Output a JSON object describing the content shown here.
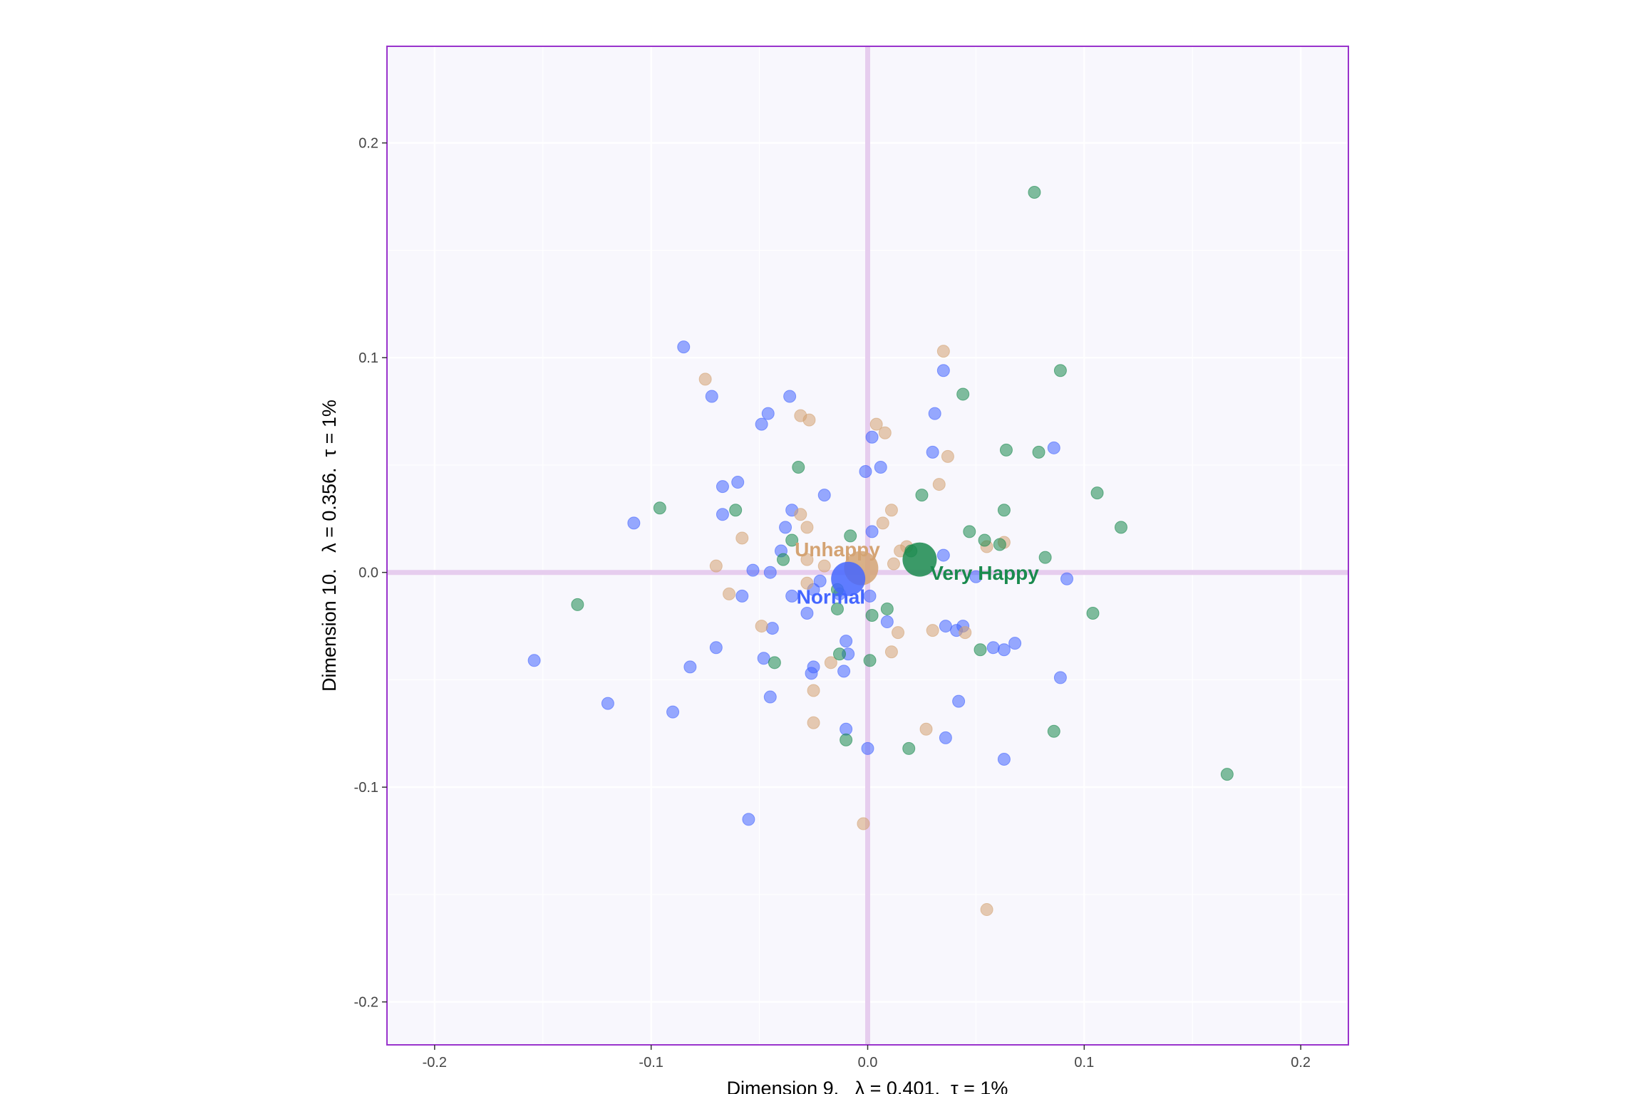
{
  "chart_data": {
    "type": "scatter",
    "title": "",
    "xlabel": "Dimension 9.   λ = 0.401.  τ = 1%",
    "ylabel": "Dimension 10.   λ = 0.356.  τ = 1%",
    "xlim": [
      -0.222,
      0.222
    ],
    "ylim": [
      -0.22,
      0.245
    ],
    "x_ticks": [
      -0.2,
      -0.1,
      0.0,
      0.1,
      0.2
    ],
    "x_tick_labels": [
      "-0.2",
      "-0.1",
      "0.0",
      "0.1",
      "0.2"
    ],
    "y_ticks": [
      -0.2,
      -0.1,
      0.0,
      0.1,
      0.2
    ],
    "y_tick_labels": [
      "-0.2",
      "-0.1",
      "0.0",
      "0.1",
      "0.2"
    ],
    "grid": true,
    "colors": {
      "panel_background": "#f8f7fd",
      "panel_border": "#9933cc",
      "origin_lines": "#e6cdee",
      "grid": "#ffffff",
      "Normal": "#4466ff",
      "Unhappy": "#d4a373",
      "Very Happy": "#1a8a4e"
    },
    "series": [
      {
        "name": "Normal",
        "color": "#4466ff",
        "centroid": [
          -0.009,
          -0.003
        ],
        "points": [
          [
            -0.085,
            0.105
          ],
          [
            -0.072,
            0.082
          ],
          [
            -0.036,
            0.082
          ],
          [
            -0.046,
            0.074
          ],
          [
            -0.049,
            0.069
          ],
          [
            0.002,
            0.063
          ],
          [
            0.031,
            0.074
          ],
          [
            0.035,
            0.094
          ],
          [
            0.03,
            0.056
          ],
          [
            0.086,
            0.058
          ],
          [
            -0.001,
            0.047
          ],
          [
            0.006,
            0.049
          ],
          [
            -0.06,
            0.042
          ],
          [
            -0.067,
            0.04
          ],
          [
            -0.02,
            0.036
          ],
          [
            -0.035,
            0.029
          ],
          [
            -0.108,
            0.023
          ],
          [
            -0.067,
            0.027
          ],
          [
            -0.038,
            0.021
          ],
          [
            -0.04,
            0.01
          ],
          [
            -0.053,
            0.001
          ],
          [
            -0.045,
            0.0
          ],
          [
            -0.035,
            -0.011
          ],
          [
            -0.022,
            -0.004
          ],
          [
            -0.025,
            -0.008
          ],
          [
            -0.028,
            -0.019
          ],
          [
            -0.013,
            -0.01
          ],
          [
            0.001,
            -0.011
          ],
          [
            0.002,
            0.019
          ],
          [
            0.035,
            0.008
          ],
          [
            0.05,
            -0.002
          ],
          [
            0.092,
            -0.003
          ],
          [
            -0.058,
            -0.011
          ],
          [
            -0.044,
            -0.026
          ],
          [
            -0.07,
            -0.035
          ],
          [
            -0.048,
            -0.04
          ],
          [
            -0.082,
            -0.044
          ],
          [
            -0.025,
            -0.044
          ],
          [
            -0.026,
            -0.047
          ],
          [
            -0.011,
            -0.046
          ],
          [
            -0.01,
            -0.032
          ],
          [
            -0.009,
            -0.038
          ],
          [
            0.009,
            -0.023
          ],
          [
            0.036,
            -0.025
          ],
          [
            0.041,
            -0.027
          ],
          [
            0.044,
            -0.025
          ],
          [
            0.058,
            -0.035
          ],
          [
            0.063,
            -0.036
          ],
          [
            0.068,
            -0.033
          ],
          [
            0.089,
            -0.049
          ],
          [
            -0.154,
            -0.041
          ],
          [
            -0.12,
            -0.061
          ],
          [
            -0.09,
            -0.065
          ],
          [
            -0.045,
            -0.058
          ],
          [
            -0.01,
            -0.073
          ],
          [
            0.0,
            -0.082
          ],
          [
            0.036,
            -0.077
          ],
          [
            0.042,
            -0.06
          ],
          [
            0.063,
            -0.087
          ],
          [
            -0.055,
            -0.115
          ]
        ]
      },
      {
        "name": "Unhappy",
        "color": "#d4a373",
        "centroid": [
          -0.003,
          0.002
        ],
        "points": [
          [
            -0.075,
            0.09
          ],
          [
            -0.031,
            0.073
          ],
          [
            -0.027,
            0.071
          ],
          [
            0.004,
            0.069
          ],
          [
            0.008,
            0.065
          ],
          [
            0.035,
            0.103
          ],
          [
            0.037,
            0.054
          ],
          [
            0.033,
            0.041
          ],
          [
            0.011,
            0.029
          ],
          [
            0.007,
            0.023
          ],
          [
            -0.031,
            0.027
          ],
          [
            -0.028,
            0.021
          ],
          [
            -0.058,
            0.016
          ],
          [
            -0.07,
            0.003
          ],
          [
            -0.064,
            -0.01
          ],
          [
            -0.028,
            0.006
          ],
          [
            -0.02,
            0.003
          ],
          [
            -0.028,
            -0.005
          ],
          [
            0.012,
            0.004
          ],
          [
            0.015,
            0.01
          ],
          [
            0.018,
            0.012
          ],
          [
            0.055,
            0.012
          ],
          [
            0.063,
            0.014
          ],
          [
            -0.049,
            -0.025
          ],
          [
            -0.017,
            -0.042
          ],
          [
            -0.025,
            -0.055
          ],
          [
            -0.025,
            -0.07
          ],
          [
            0.011,
            -0.037
          ],
          [
            0.014,
            -0.028
          ],
          [
            0.03,
            -0.027
          ],
          [
            0.045,
            -0.028
          ],
          [
            0.027,
            -0.073
          ],
          [
            -0.002,
            -0.117
          ],
          [
            0.055,
            -0.157
          ]
        ]
      },
      {
        "name": "Very Happy",
        "color": "#1a8a4e",
        "centroid": [
          0.024,
          0.006
        ],
        "points": [
          [
            0.077,
            0.177
          ],
          [
            0.089,
            0.094
          ],
          [
            0.044,
            0.083
          ],
          [
            0.064,
            0.057
          ],
          [
            0.079,
            0.056
          ],
          [
            0.106,
            0.037
          ],
          [
            0.117,
            0.021
          ],
          [
            0.063,
            0.029
          ],
          [
            0.025,
            0.036
          ],
          [
            -0.032,
            0.049
          ],
          [
            -0.096,
            0.03
          ],
          [
            -0.061,
            0.029
          ],
          [
            -0.035,
            0.015
          ],
          [
            -0.039,
            0.006
          ],
          [
            -0.008,
            0.017
          ],
          [
            0.047,
            0.019
          ],
          [
            0.054,
            0.015
          ],
          [
            0.061,
            0.013
          ],
          [
            0.082,
            0.007
          ],
          [
            0.02,
            0.01
          ],
          [
            -0.014,
            -0.008
          ],
          [
            -0.014,
            -0.017
          ],
          [
            0.009,
            -0.017
          ],
          [
            0.002,
            -0.02
          ],
          [
            0.104,
            -0.019
          ],
          [
            -0.134,
            -0.015
          ],
          [
            -0.043,
            -0.042
          ],
          [
            -0.013,
            -0.038
          ],
          [
            0.001,
            -0.041
          ],
          [
            0.052,
            -0.036
          ],
          [
            0.086,
            -0.074
          ],
          [
            -0.01,
            -0.078
          ],
          [
            0.019,
            -0.082
          ],
          [
            0.166,
            -0.094
          ]
        ]
      }
    ],
    "category_labels": [
      {
        "text": "Unhappy",
        "series": "Unhappy",
        "x": -0.014,
        "y": 0.01
      },
      {
        "text": "Normal",
        "series": "Normal",
        "x": -0.017,
        "y": -0.012
      },
      {
        "text": "Very Happy",
        "series": "Very Happy",
        "x": 0.054,
        "y": -0.001
      }
    ]
  }
}
